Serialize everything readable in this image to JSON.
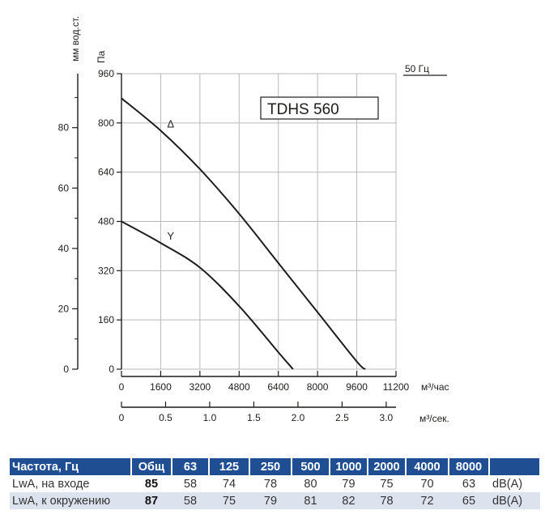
{
  "chart_data": {
    "type": "line",
    "model": "TDHS 560",
    "frequency_label": "50 Гц",
    "y_left_outer_label": "мм вод.ст.",
    "y_left_inner_label": "Па",
    "x_primary_label": "м³/час",
    "x_secondary_label": "м³/сек.",
    "y_pa_ticks": [
      "0",
      "160",
      "320",
      "480",
      "640",
      "800",
      "960"
    ],
    "y_mm_ticks": [
      "0",
      "20",
      "40",
      "60",
      "80"
    ],
    "x_m3h_ticks": [
      "0",
      "1600",
      "3200",
      "4800",
      "6400",
      "8000",
      "9600",
      "11200"
    ],
    "x_m3s_ticks": [
      "0",
      "0.5",
      "1.0",
      "1.5",
      "2.0",
      "2.5",
      "3.0"
    ],
    "xlim_m3h": [
      0,
      11200
    ],
    "ylim_pa": [
      0,
      960
    ],
    "grid": true,
    "series": [
      {
        "name": "Δ",
        "x": [
          0,
          1600,
          3200,
          4800,
          6400,
          8000,
          9600,
          9950
        ],
        "y": [
          880,
          775,
          650,
          505,
          345,
          185,
          25,
          0
        ]
      },
      {
        "name": "Y",
        "x": [
          0,
          1600,
          3200,
          4800,
          6400,
          7000
        ],
        "y": [
          480,
          410,
          330,
          205,
          55,
          0
        ]
      }
    ]
  },
  "table": {
    "headers": [
      "Частота, Гц",
      "Общ",
      "63",
      "125",
      "250",
      "500",
      "1000",
      "2000",
      "4000",
      "8000",
      ""
    ],
    "rows": [
      {
        "label": "LwA, на входе",
        "total": "85",
        "values": [
          "58",
          "74",
          "78",
          "80",
          "79",
          "75",
          "70",
          "63"
        ],
        "unit": "dB(A)"
      },
      {
        "label": "LwA, к окружению",
        "total": "87",
        "values": [
          "58",
          "75",
          "79",
          "81",
          "82",
          "78",
          "72",
          "65"
        ],
        "unit": "dB(A)"
      }
    ]
  }
}
